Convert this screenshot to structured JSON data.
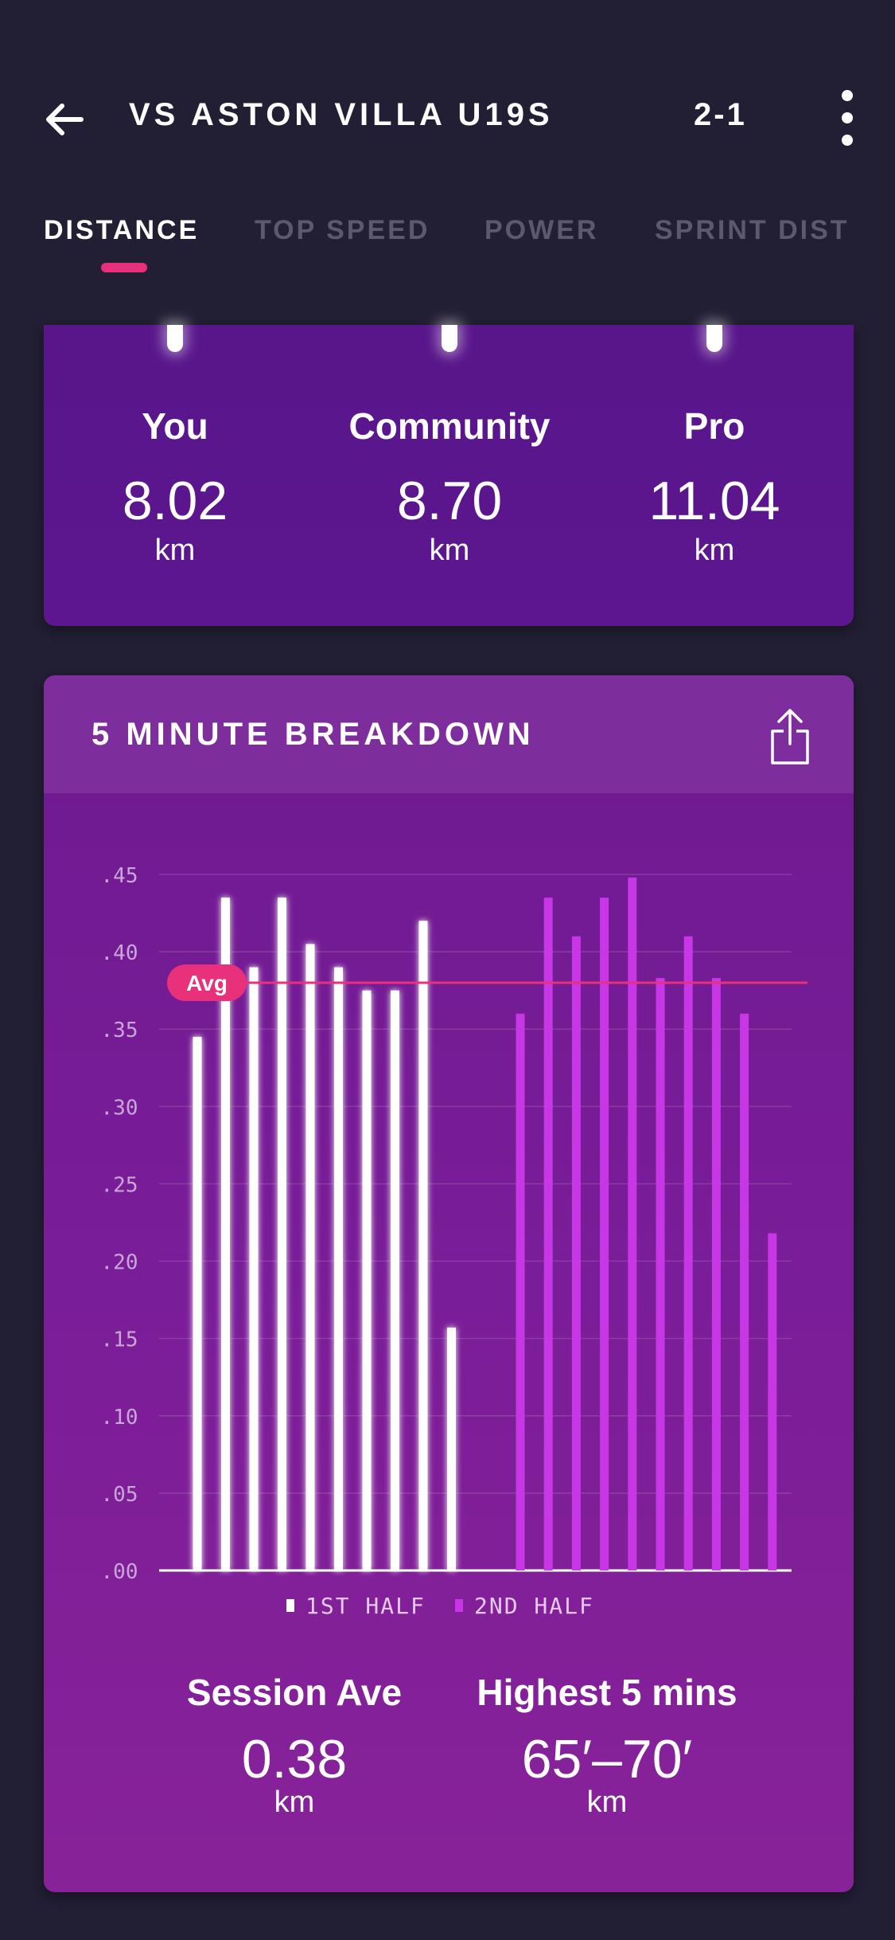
{
  "header": {
    "title": "VS ASTON VILLA U19S",
    "score": "2-1",
    "back_icon": "arrow-left-icon",
    "more_icon": "more-vertical-icon"
  },
  "tabs": [
    {
      "label": "DISTANCE",
      "active": true
    },
    {
      "label": "TOP SPEED",
      "active": false
    },
    {
      "label": "POWER",
      "active": false
    },
    {
      "label": "SPRINT DIST",
      "active": false
    }
  ],
  "comparison": [
    {
      "label": "You",
      "value": "8.02",
      "unit": "km"
    },
    {
      "label": "Community",
      "value": "8.70",
      "unit": "km"
    },
    {
      "label": "Pro",
      "value": "11.04",
      "unit": "km"
    }
  ],
  "breakdown": {
    "title": "5 MINUTE BREAKDOWN",
    "share_icon": "share-icon",
    "session_ave": {
      "label": "Session Ave",
      "value": "0.38",
      "unit": "km"
    },
    "highest": {
      "label": "Highest 5 mins",
      "value": "65′–70′",
      "unit": "km"
    }
  },
  "colors": {
    "accent": "#e8317a",
    "first_half": "#ffffff",
    "second_half": "#c837e6"
  },
  "chart_data": {
    "type": "bar",
    "y_ticks": [
      ".00",
      ".05",
      ".10",
      ".15",
      ".20",
      ".25",
      ".30",
      ".35",
      ".40",
      ".45"
    ],
    "ylim": [
      0,
      0.45
    ],
    "average": 0.38,
    "average_label": "Avg",
    "series": [
      {
        "name": "1ST HALF",
        "values": [
          0.345,
          0.435,
          0.39,
          0.435,
          0.405,
          0.39,
          0.375,
          0.375,
          0.42,
          0.157
        ]
      },
      {
        "name": "2ND HALF",
        "values": [
          0.36,
          0.435,
          0.41,
          0.435,
          0.448,
          0.383,
          0.41,
          0.383,
          0.36,
          0.218
        ]
      }
    ],
    "grid": true,
    "legend": "bottom-center"
  }
}
